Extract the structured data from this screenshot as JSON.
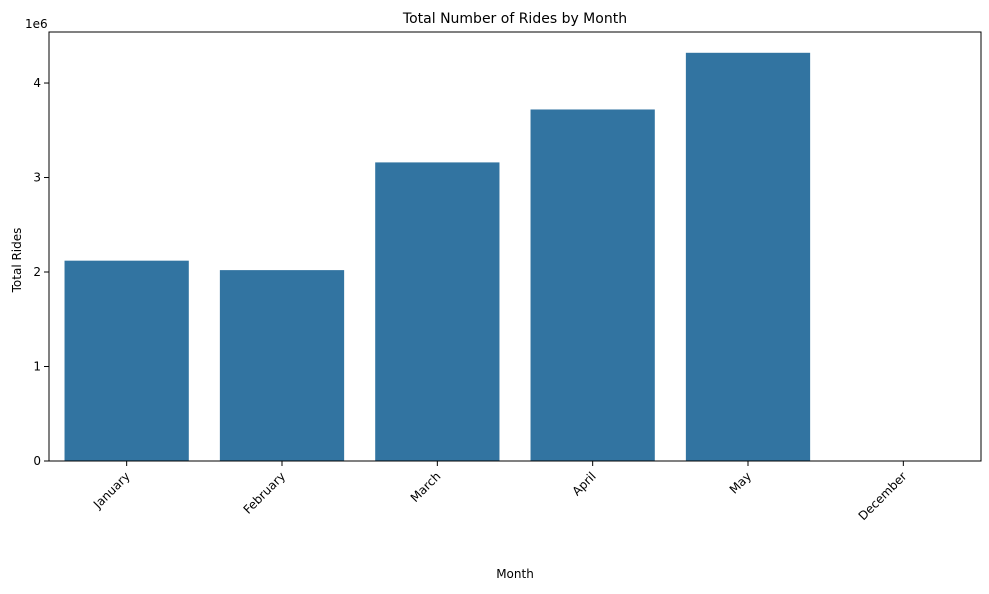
{
  "chart_data": {
    "type": "bar",
    "title": "Total Number of Rides by Month",
    "xlabel": "Month",
    "ylabel": "Total Rides",
    "y_multiplier_label": "1e6",
    "categories": [
      "January",
      "February",
      "March",
      "April",
      "May",
      "December"
    ],
    "values": [
      2120000,
      2020000,
      3160000,
      3720000,
      4320000,
      0
    ],
    "y_ticks": [
      0,
      1,
      2,
      3,
      4
    ],
    "ylim": [
      0,
      4540000
    ],
    "bar_color": "#3274a1",
    "grid": false,
    "legend": "none",
    "x_tick_rotation": 45
  }
}
